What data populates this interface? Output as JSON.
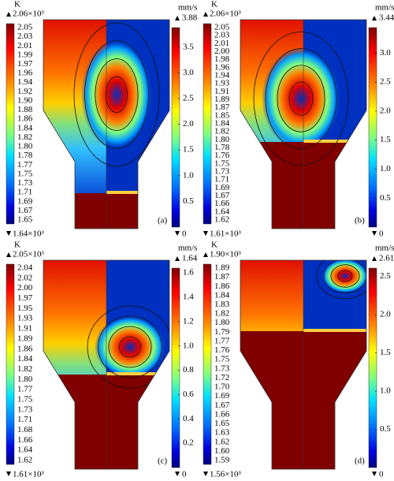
{
  "panels": [
    {
      "label": "(a)",
      "temperature": {
        "unit": "K",
        "max": "2.06×10³",
        "min": "1.64×10³",
        "ticks": [
          "2.05",
          "2.03",
          "2.01",
          "1.99",
          "1.97",
          "1.96",
          "1.94",
          "1.92",
          "1.90",
          "1.88",
          "1.86",
          "1.84",
          "1.82",
          "1.80",
          "1.78",
          "1.77",
          "1.75",
          "1.73",
          "1.71",
          "1.69",
          "1.67",
          "1.65"
        ]
      },
      "velocity": {
        "unit": "mm/s",
        "max": "3.88",
        "min": "0",
        "ticks": [
          "3.5",
          "3.0",
          "2.5",
          "2.0",
          "1.5",
          "1.0",
          "0.5"
        ]
      }
    },
    {
      "label": "(b)",
      "temperature": {
        "unit": "K",
        "max": "2.06×10³",
        "min": "1.61×10³",
        "ticks": [
          "2.05",
          "2.03",
          "2.01",
          "2.00",
          "1.98",
          "1.96",
          "1.94",
          "1.93",
          "1.91",
          "1.89",
          "1.87",
          "1.85",
          "1.84",
          "1.82",
          "1.80",
          "1.78",
          "1.76",
          "1.75",
          "1.73",
          "1.71",
          "1.69",
          "1.67",
          "1.66",
          "1.64",
          "1.62"
        ]
      },
      "velocity": {
        "unit": "mm/s",
        "max": "3.44",
        "min": "0",
        "ticks": [
          "3.0",
          "2.5",
          "2.0",
          "1.5",
          "1.0",
          "0.5"
        ]
      }
    },
    {
      "label": "(c)",
      "temperature": {
        "unit": "K",
        "max": "2.05×10³",
        "min": "1.61×10³",
        "ticks": [
          "2.04",
          "2.02",
          "2.00",
          "1.97",
          "1.95",
          "1.93",
          "1.91",
          "1.89",
          "1.86",
          "1.84",
          "1.82",
          "1.80",
          "1.77",
          "1.75",
          "1.73",
          "1.71",
          "1.68",
          "1.66",
          "1.64",
          "1.62"
        ]
      },
      "velocity": {
        "unit": "mm/s",
        "max": "1.64",
        "min": "0",
        "ticks": [
          "1.6",
          "1.4",
          "1.2",
          "1.0",
          "0.8",
          "0.6",
          "0.4",
          "0.2"
        ]
      }
    },
    {
      "label": "(d)",
      "temperature": {
        "unit": "K",
        "max": "1.90×10³",
        "min": "1.56×10³",
        "ticks": [
          "1.89",
          "1.87",
          "1.86",
          "1.84",
          "1.83",
          "1.82",
          "1.80",
          "1.79",
          "1.77",
          "1.76",
          "1.75",
          "1.73",
          "1.72",
          "1.70",
          "1.69",
          "1.67",
          "1.66",
          "1.65",
          "1.63",
          "1.62",
          "1.60",
          "1.59"
        ]
      },
      "velocity": {
        "unit": "mm/s",
        "max": "2.61",
        "min": "0",
        "ticks": [
          "2.5",
          "2.0",
          "1.5",
          "1.0",
          "0.5"
        ]
      }
    }
  ]
}
